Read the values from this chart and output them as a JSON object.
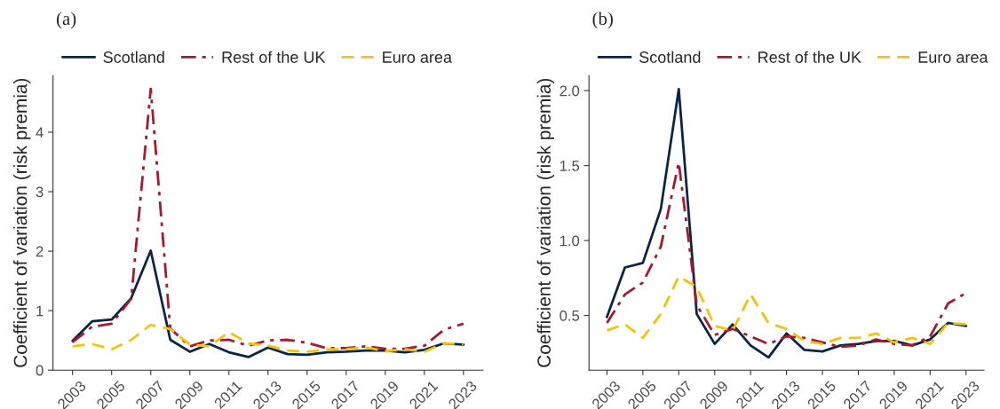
{
  "chart_data": [
    {
      "type": "line",
      "title": "(a)",
      "ylabel": "Coefficient of variation (risk premia)",
      "x": [
        2003,
        2004,
        2005,
        2006,
        2007,
        2008,
        2009,
        2010,
        2011,
        2012,
        2013,
        2014,
        2015,
        2016,
        2017,
        2018,
        2019,
        2020,
        2021,
        2022,
        2023
      ],
      "series": [
        {
          "name": "Scotland",
          "color": "#0b2545",
          "line_style": "solid",
          "values": [
            0.49,
            0.82,
            0.85,
            1.21,
            2.01,
            0.51,
            0.31,
            0.44,
            0.3,
            0.22,
            0.38,
            0.27,
            0.26,
            0.3,
            0.31,
            0.33,
            0.33,
            0.3,
            0.34,
            0.45,
            0.43
          ]
        },
        {
          "name": "Rest of the UK",
          "color": "#a6192e",
          "line_style": "dashdot",
          "values": [
            0.47,
            0.73,
            0.78,
            1.2,
            4.73,
            0.7,
            0.4,
            0.5,
            0.51,
            0.41,
            0.5,
            0.51,
            0.46,
            0.37,
            0.37,
            0.4,
            0.36,
            0.36,
            0.41,
            0.68,
            0.78
          ]
        },
        {
          "name": "Euro area",
          "color": "#f4c20d",
          "line_style": "dashed",
          "values": [
            0.4,
            0.44,
            0.35,
            0.51,
            0.76,
            0.69,
            0.43,
            0.4,
            0.64,
            0.45,
            0.41,
            0.33,
            0.31,
            0.35,
            0.35,
            0.38,
            0.32,
            0.35,
            0.31,
            0.45,
            0.44
          ]
        }
      ],
      "xlim": [
        2002,
        2024
      ],
      "xticks": [
        2003,
        2005,
        2007,
        2009,
        2011,
        2013,
        2015,
        2017,
        2019,
        2021,
        2023
      ],
      "ylim": [
        0,
        4.95
      ],
      "yticks": [
        0,
        1,
        2,
        3,
        4
      ],
      "grid": false,
      "legend": "top"
    },
    {
      "type": "line",
      "title": "(b)",
      "ylabel": "Coefficient of variation (risk premia)",
      "x": [
        2003,
        2004,
        2005,
        2006,
        2007,
        2008,
        2009,
        2010,
        2011,
        2012,
        2013,
        2014,
        2015,
        2016,
        2017,
        2018,
        2019,
        2020,
        2021,
        2022,
        2023
      ],
      "series": [
        {
          "name": "Scotland",
          "color": "#0b2545",
          "line_style": "solid",
          "values": [
            0.49,
            0.82,
            0.85,
            1.21,
            2.01,
            0.51,
            0.31,
            0.44,
            0.3,
            0.22,
            0.38,
            0.27,
            0.26,
            0.3,
            0.31,
            0.33,
            0.33,
            0.3,
            0.34,
            0.45,
            0.43
          ]
        },
        {
          "name": "Rest of the UK",
          "color": "#a6192e",
          "line_style": "dashdot",
          "values": [
            0.45,
            0.64,
            0.72,
            0.96,
            1.52,
            0.57,
            0.37,
            0.41,
            0.36,
            0.31,
            0.36,
            0.35,
            0.32,
            0.29,
            0.3,
            0.34,
            0.31,
            0.3,
            0.36,
            0.58,
            0.65
          ]
        },
        {
          "name": "Euro area",
          "color": "#f4c20d",
          "line_style": "dashed",
          "values": [
            0.4,
            0.44,
            0.35,
            0.51,
            0.76,
            0.69,
            0.43,
            0.4,
            0.64,
            0.45,
            0.41,
            0.33,
            0.31,
            0.35,
            0.35,
            0.38,
            0.32,
            0.35,
            0.31,
            0.45,
            0.44
          ]
        }
      ],
      "xlim": [
        2002,
        2024
      ],
      "xticks": [
        2003,
        2005,
        2007,
        2009,
        2011,
        2013,
        2015,
        2017,
        2019,
        2021,
        2023
      ],
      "ylim": [
        0.135,
        2.1
      ],
      "yticks": [
        {
          "value": 0.5,
          "label": "0.5"
        },
        {
          "value": 1.0,
          "label": "1.0"
        },
        {
          "value": 1.5,
          "label": "1.5"
        },
        {
          "value": 2.0,
          "label": "2.0"
        }
      ],
      "grid": false,
      "legend": "top"
    }
  ]
}
